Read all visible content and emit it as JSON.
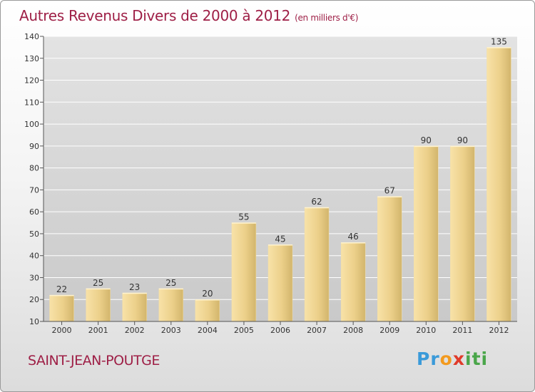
{
  "title": "Autres Revenus Divers de 2000 à 2012",
  "subtitle": "(en milliers d'€)",
  "town": "SAINT-JEAN-POUTGE",
  "logo": {
    "letters": [
      "P",
      "r",
      "o",
      "x",
      "i",
      "t",
      "i"
    ],
    "colors": [
      "#3a9ad9",
      "#3a9ad9",
      "#f39a1e",
      "#e03a2a",
      "#4aa64a",
      "#4aa64a",
      "#4aa64a"
    ]
  },
  "colors": {
    "bar_light": "#f7dc9a",
    "bar_dark": "#cfb164",
    "title": "#9e1f46",
    "grid": "#ffffff",
    "axis": "#555555"
  },
  "chart_data": {
    "type": "bar",
    "categories": [
      "2000",
      "2001",
      "2002",
      "2003",
      "2004",
      "2005",
      "2006",
      "2007",
      "2008",
      "2009",
      "2010",
      "2011",
      "2012"
    ],
    "values": [
      22,
      25,
      23,
      25,
      20,
      55,
      45,
      62,
      46,
      67,
      90,
      90,
      135
    ],
    "ylim": [
      10,
      140
    ],
    "yticks": [
      10,
      20,
      30,
      40,
      50,
      60,
      70,
      80,
      90,
      100,
      110,
      120,
      130,
      140
    ],
    "grid": true
  }
}
